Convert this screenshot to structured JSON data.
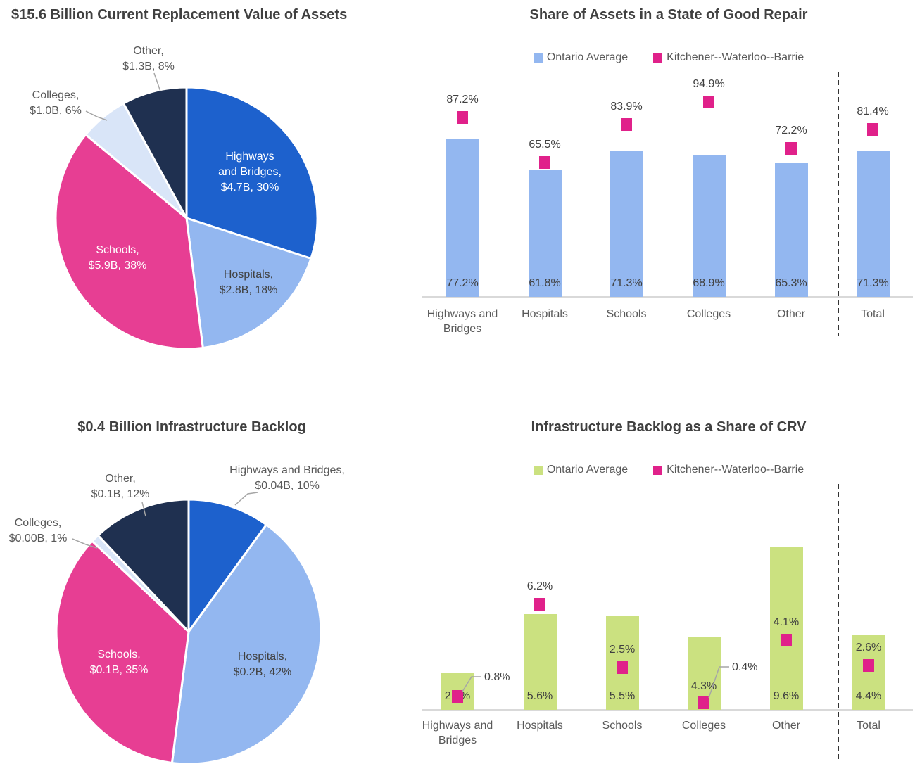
{
  "colors": {
    "blue": "#1d61cd",
    "light_blue": "#93b7f0",
    "pink": "#e73e93",
    "pale_blue": "#d9e5f8",
    "navy": "#1f3050",
    "green": "#cbe180",
    "marker_pink": "#e0218a",
    "axis_gray": "#d9d9d9",
    "leader_gray": "#a6a6a6",
    "separator_dark": "#333333",
    "title_text": "#404040",
    "label_text": "#404040",
    "muted_text": "#595959"
  },
  "chart_data": [
    {
      "id": "crv_pie",
      "type": "pie",
      "title": "$15.6 Billion Current Replacement Value of Assets",
      "slices": [
        {
          "label": "Highways and Bridges",
          "value": "$4.7B",
          "percent": 30,
          "display": [
            "Highways",
            "and Bridges,",
            "$4.7B, 30%"
          ],
          "color_key": "blue"
        },
        {
          "label": "Hospitals",
          "value": "$2.8B",
          "percent": 18,
          "display": [
            "Hospitals,",
            "$2.8B, 18%"
          ],
          "color_key": "light_blue"
        },
        {
          "label": "Schools",
          "value": "$5.9B",
          "percent": 38,
          "display": [
            "Schools,",
            "$5.9B, 38%"
          ],
          "color_key": "pink"
        },
        {
          "label": "Colleges",
          "value": "$1.0B",
          "percent": 6,
          "display": [
            "Colleges,",
            "$1.0B, 6%"
          ],
          "color_key": "pale_blue"
        },
        {
          "label": "Other",
          "value": "$1.3B",
          "percent": 8,
          "display": [
            "Other,",
            "$1.3B, 8%"
          ],
          "color_key": "navy"
        }
      ]
    },
    {
      "id": "good_repair_bar",
      "type": "bar",
      "title": "Share of Assets in a State of Good Repair",
      "legend": [
        "Ontario Average",
        "Kitchener--Waterloo--Barrie"
      ],
      "categories": [
        "Highways and Bridges",
        "Hospitals",
        "Schools",
        "Colleges",
        "Other",
        "Total"
      ],
      "series": [
        {
          "name": "Ontario Average",
          "style": "bar",
          "color_key": "light_blue",
          "values": [
            77.2,
            61.8,
            71.3,
            68.9,
            65.3,
            71.3
          ]
        },
        {
          "name": "Kitchener--Waterloo--Barrie",
          "style": "square-marker",
          "color_key": "marker_pink",
          "values": [
            87.2,
            65.5,
            83.9,
            94.9,
            72.2,
            81.4
          ]
        }
      ],
      "ylim": [
        0,
        100
      ],
      "value_suffix": "%",
      "separator_before_category": "Total",
      "grid": false,
      "legend_position": "top"
    },
    {
      "id": "backlog_pie",
      "type": "pie",
      "title": "$0.4 Billion Infrastructure Backlog",
      "slices": [
        {
          "label": "Highways and Bridges",
          "value": "$0.04B",
          "percent": 10,
          "display": [
            "Highways and Bridges,",
            "$0.04B, 10%"
          ],
          "color_key": "blue"
        },
        {
          "label": "Hospitals",
          "value": "$0.2B",
          "percent": 42,
          "display": [
            "Hospitals,",
            "$0.2B, 42%"
          ],
          "color_key": "light_blue"
        },
        {
          "label": "Schools",
          "value": "$0.1B",
          "percent": 35,
          "display": [
            "Schools,",
            "$0.1B, 35%"
          ],
          "color_key": "pink"
        },
        {
          "label": "Colleges",
          "value": "$0.00B",
          "percent": 1,
          "display": [
            "Colleges,",
            "$0.00B, 1%"
          ],
          "color_key": "pale_blue"
        },
        {
          "label": "Other",
          "value": "$0.1B",
          "percent": 12,
          "display": [
            "Other,",
            "$0.1B, 12%"
          ],
          "color_key": "navy"
        }
      ]
    },
    {
      "id": "backlog_share_bar",
      "type": "bar",
      "title": "Infrastructure Backlog as a Share of CRV",
      "legend": [
        "Ontario Average",
        "Kitchener--Waterloo--Barrie"
      ],
      "categories": [
        "Highways and Bridges",
        "Hospitals",
        "Schools",
        "Colleges",
        "Other",
        "Total"
      ],
      "series": [
        {
          "name": "Ontario Average",
          "style": "bar",
          "color_key": "green",
          "values": [
            2.2,
            5.6,
            5.5,
            4.3,
            9.6,
            4.4
          ]
        },
        {
          "name": "Kitchener--Waterloo--Barrie",
          "style": "square-marker",
          "color_key": "marker_pink",
          "values": [
            0.8,
            6.2,
            2.5,
            0.4,
            4.1,
            2.6
          ]
        }
      ],
      "ylim": [
        0,
        10
      ],
      "value_suffix": "%",
      "separator_before_category": "Total",
      "grid": false,
      "legend_position": "top"
    }
  ]
}
